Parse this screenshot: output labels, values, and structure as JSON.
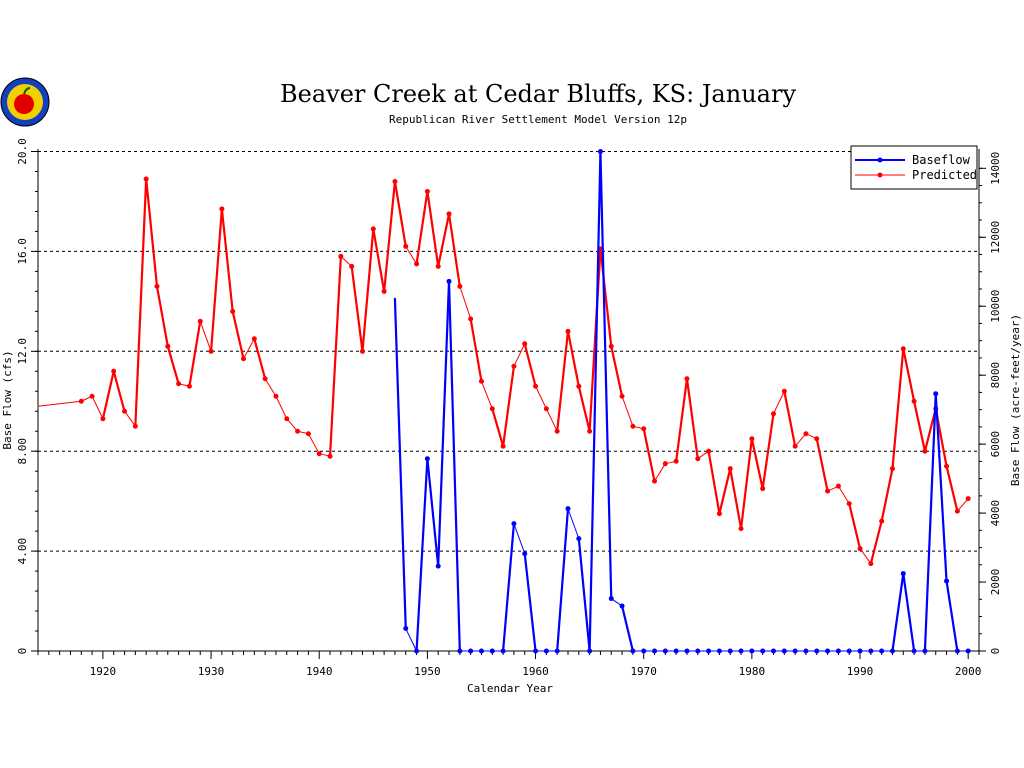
{
  "chart_data": {
    "type": "line",
    "title": "Beaver Creek at Cedar Bluffs, KS: January",
    "subtitle": "Republican River Settlement Model Version 12p",
    "xlabel": "Calendar Year",
    "ylabel": "Base Flow (cfs)",
    "ylabel_right": "Base Flow (acre-feet/year)",
    "xlim": [
      1914,
      2001
    ],
    "ylim": [
      0,
      20.1
    ],
    "ylim_right": [
      0,
      14560
    ],
    "x_ticks": [
      1920,
      1930,
      1940,
      1950,
      1960,
      1970,
      1980,
      1990,
      2000
    ],
    "y_ticks": [
      0,
      4,
      8,
      12,
      16,
      20
    ],
    "y_tick_labels": [
      "0",
      "4.00",
      "8.00",
      "12.0",
      "16.0",
      "20.0"
    ],
    "y_ticks_right": [
      0,
      2000,
      4000,
      6000,
      8000,
      10000,
      12000,
      14000
    ],
    "y_tick_labels_right": [
      "0",
      "2000",
      "4000",
      "6000",
      "8000",
      "10000",
      "12000",
      "14000"
    ],
    "grid": "horizontal-dashed",
    "legend": "top-right",
    "series": [
      {
        "name": "Baseflow",
        "color": "#0000ff",
        "start_without_marker": 1947,
        "x": [
          1947,
          1948,
          1949,
          1950,
          1951,
          1952,
          1953,
          1954,
          1955,
          1956,
          1957,
          1958,
          1959,
          1960,
          1961,
          1962,
          1963,
          1964,
          1965,
          1966,
          1967,
          1968,
          1969,
          1970,
          1971,
          1972,
          1973,
          1974,
          1975,
          1976,
          1977,
          1978,
          1979,
          1980,
          1981,
          1982,
          1983,
          1984,
          1985,
          1986,
          1987,
          1988,
          1989,
          1990,
          1991,
          1992,
          1993,
          1994,
          1995,
          1996,
          1997,
          1998,
          1999,
          2000
        ],
        "values": [
          14.1,
          0.9,
          0.0,
          7.7,
          3.4,
          14.8,
          0,
          0,
          0,
          0,
          0,
          5.1,
          3.9,
          0,
          0,
          0,
          5.7,
          4.5,
          0,
          20.0,
          2.1,
          1.8,
          0,
          0,
          0,
          0,
          0,
          0,
          0,
          0,
          0,
          0,
          0,
          0,
          0,
          0,
          0,
          0,
          0,
          0,
          0,
          0,
          0,
          0,
          0,
          0,
          0,
          3.1,
          0,
          0,
          10.3,
          2.8,
          0,
          0
        ]
      },
      {
        "name": "Predicted",
        "color": "#ff0000",
        "start_without_marker": 1914,
        "x": [
          1914,
          1918,
          1919,
          1920,
          1921,
          1922,
          1923,
          1924,
          1925,
          1926,
          1927,
          1928,
          1929,
          1930,
          1931,
          1932,
          1933,
          1934,
          1935,
          1936,
          1937,
          1938,
          1939,
          1940,
          1941,
          1942,
          1943,
          1944,
          1945,
          1946,
          1947,
          1948,
          1949,
          1950,
          1951,
          1952,
          1953,
          1954,
          1955,
          1956,
          1957,
          1958,
          1959,
          1960,
          1961,
          1962,
          1963,
          1964,
          1965,
          1966,
          1967,
          1968,
          1969,
          1970,
          1971,
          1972,
          1973,
          1974,
          1975,
          1976,
          1977,
          1978,
          1979,
          1980,
          1981,
          1982,
          1983,
          1984,
          1985,
          1986,
          1987,
          1988,
          1989,
          1990,
          1991,
          1992,
          1993,
          1994,
          1995,
          1996,
          1997,
          1998,
          1999,
          2000
        ],
        "values": [
          9.8,
          10.0,
          10.2,
          9.3,
          11.2,
          9.6,
          9.0,
          18.9,
          14.6,
          12.2,
          10.7,
          10.6,
          13.2,
          12.0,
          17.7,
          13.6,
          11.7,
          12.5,
          10.9,
          10.2,
          9.3,
          8.8,
          8.7,
          7.9,
          7.8,
          15.8,
          15.4,
          12.0,
          16.9,
          14.4,
          18.8,
          16.2,
          15.5,
          18.4,
          15.4,
          17.5,
          14.6,
          13.3,
          10.8,
          9.7,
          8.2,
          11.4,
          12.3,
          10.6,
          9.7,
          8.8,
          12.8,
          10.6,
          8.8,
          16.1,
          12.2,
          10.2,
          9.0,
          8.9,
          6.8,
          7.5,
          7.6,
          10.9,
          7.7,
          8.0,
          5.5,
          7.3,
          4.9,
          8.5,
          6.5,
          9.5,
          10.4,
          8.2,
          8.7,
          8.5,
          6.4,
          6.6,
          5.9,
          4.1,
          3.5,
          5.2,
          7.3,
          12.1,
          10.0,
          8.0,
          9.7,
          7.4,
          5.6,
          6.1
        ]
      }
    ]
  }
}
